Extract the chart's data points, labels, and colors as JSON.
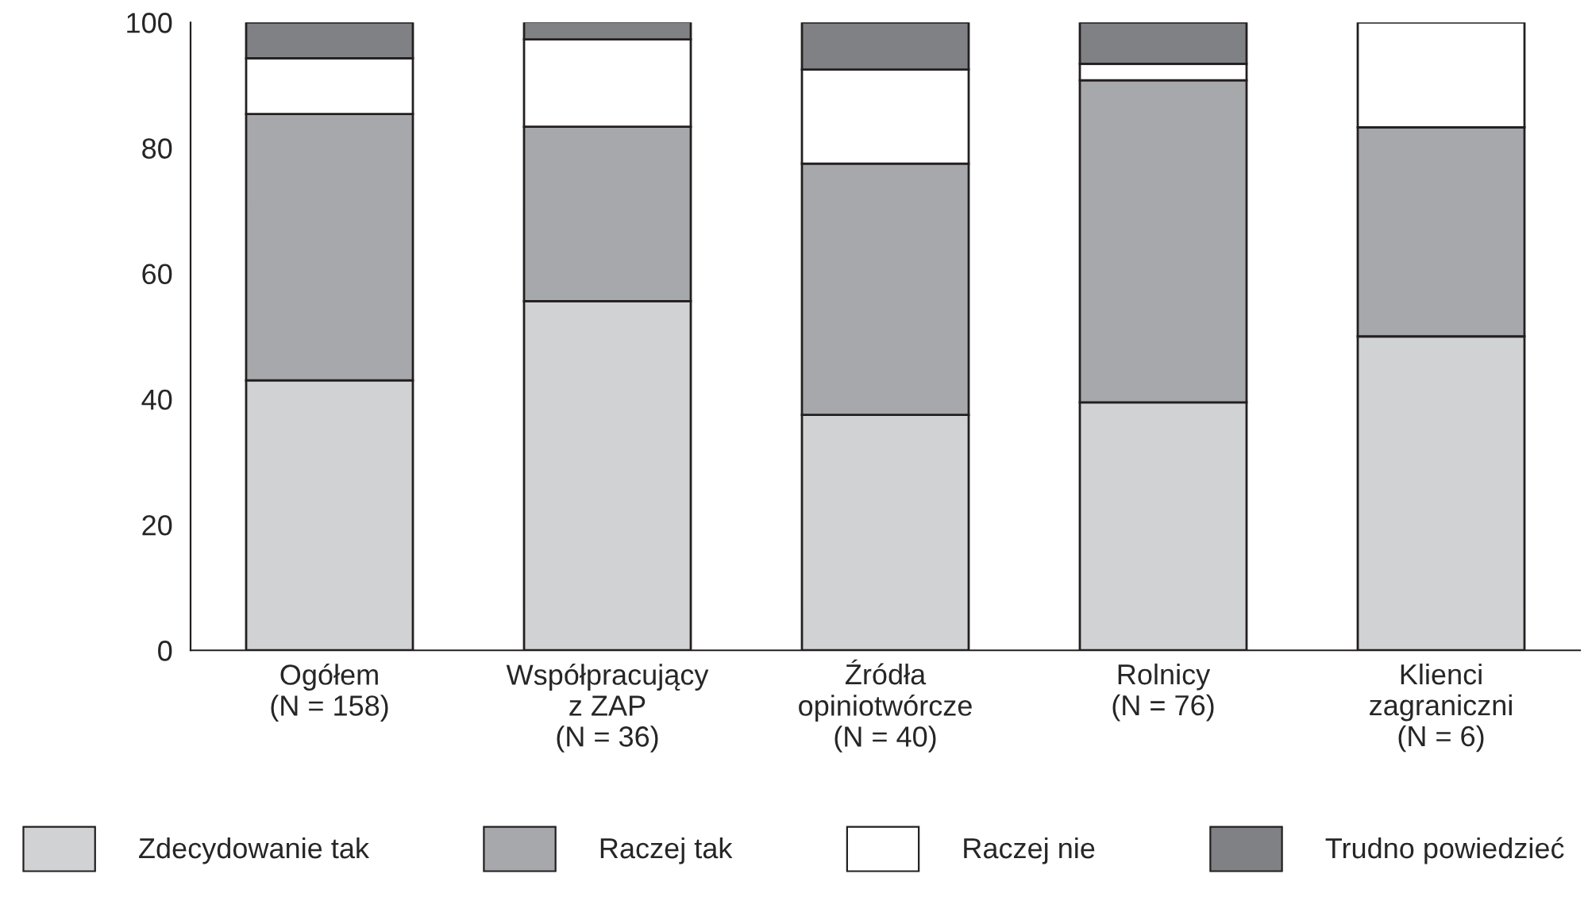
{
  "chart_data": {
    "type": "bar",
    "stacked": true,
    "categories": [
      "Ogółem\n(N = 158)",
      "Współpracujący\nz ZAP\n(N = 36)",
      "Źródła\nopiniotwórcze\n(N = 40)",
      "Rolnicy\n(N = 76)",
      "Klienci\nzagraniczni\n(N = 6)"
    ],
    "series": [
      {
        "name": "Zdecydowanie tak",
        "color": "#d1d2d4",
        "values": [
          43.0,
          55.6,
          37.5,
          39.5,
          50.0
        ]
      },
      {
        "name": "Raczej tak",
        "color": "#a7a8ab",
        "values": [
          42.4,
          27.8,
          40.0,
          51.3,
          33.3
        ]
      },
      {
        "name": "Raczej nie",
        "color": "#ffffff",
        "values": [
          8.9,
          13.9,
          15.0,
          2.6,
          16.7
        ]
      },
      {
        "name": "Trudno powiedzieć",
        "color": "#808184",
        "values": [
          5.7,
          2.8,
          7.5,
          6.6,
          0
        ]
      }
    ],
    "ylim": [
      0,
      100
    ],
    "yticks": [
      0,
      20,
      40,
      60,
      80,
      100
    ],
    "grid": false,
    "legend": "bottom"
  }
}
